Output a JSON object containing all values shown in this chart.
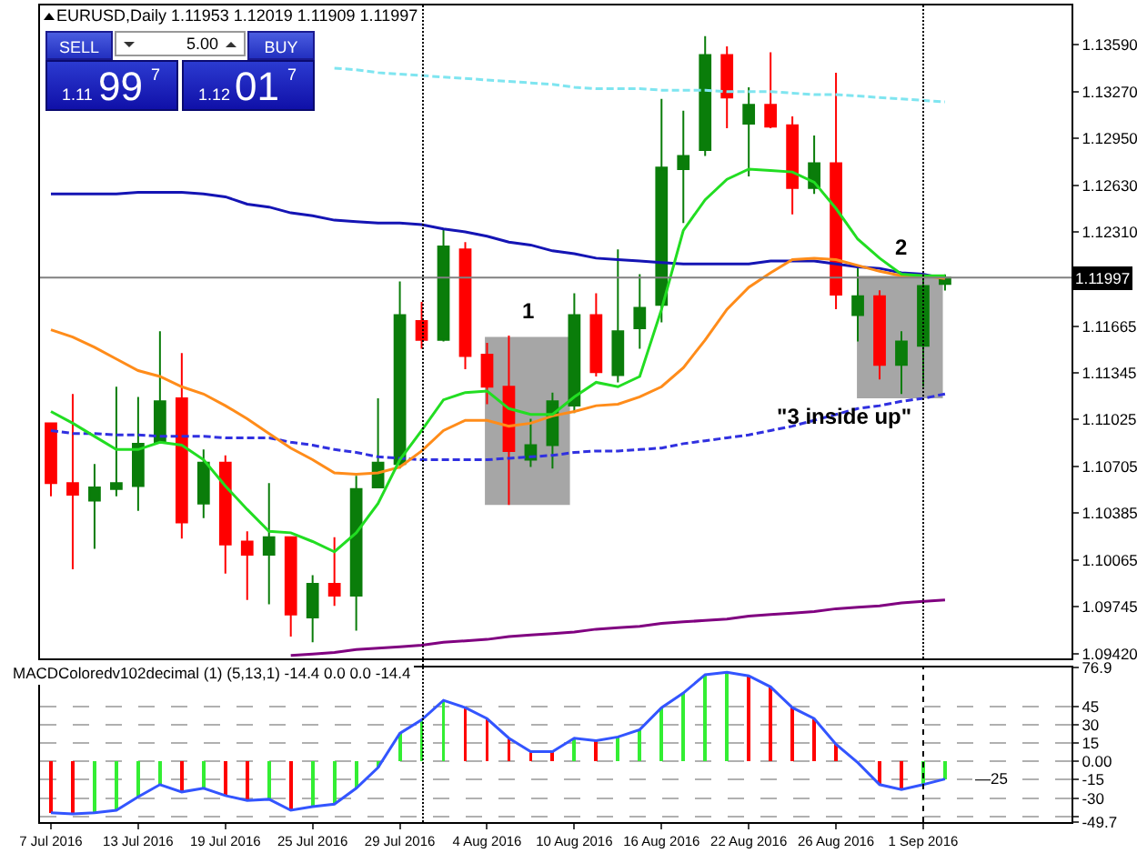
{
  "chart_data": [
    {
      "type": "candlestick",
      "title": "EURUSD,Daily 1.11953 1.12019 1.11909 1.11997",
      "categories": [
        null,
        null,
        null,
        null,
        null,
        null,
        null,
        null,
        null,
        null,
        null,
        null,
        null,
        null,
        null,
        null,
        null,
        null,
        null,
        null,
        null,
        null,
        null,
        null,
        null,
        null,
        null,
        null,
        null,
        null,
        null,
        null,
        null,
        null,
        null,
        null,
        null,
        null,
        null,
        null,
        null,
        null
      ],
      "ohlc": [
        [
          1.11,
          1.11,
          1.105,
          1.1059
        ],
        [
          1.1059,
          1.112,
          1.1,
          1.1051
        ],
        [
          1.1047,
          1.1072,
          1.1014,
          1.1056
        ],
        [
          1.1055,
          1.1125,
          1.105,
          1.1059
        ],
        [
          1.1057,
          1.1118,
          1.104,
          1.1086
        ],
        [
          1.1087,
          1.1163,
          1.1087,
          1.1115
        ],
        [
          1.1117,
          1.1148,
          1.1021,
          1.1032
        ],
        [
          1.1045,
          1.1082,
          1.1035,
          1.1073
        ],
        [
          1.1073,
          1.1078,
          1.0997,
          1.1017
        ],
        [
          1.1019,
          1.1026,
          1.0979,
          1.101
        ],
        [
          1.101,
          1.1059,
          1.0976,
          1.1022
        ],
        [
          1.1022,
          1.1022,
          1.0954,
          1.0969
        ],
        [
          1.0967,
          1.0996,
          1.095,
          1.099
        ],
        [
          1.099,
          1.1022,
          1.0975,
          1.0982
        ],
        [
          1.0982,
          1.1064,
          1.0958,
          1.1055
        ],
        [
          1.1056,
          1.1117,
          1.1056,
          1.1073
        ],
        [
          1.1072,
          1.1197,
          1.1069,
          1.1174
        ],
        [
          1.117,
          1.1183,
          1.1151,
          1.1157
        ],
        [
          1.1157,
          1.1233,
          1.1156,
          1.1221
        ],
        [
          1.1219,
          1.1224,
          1.1137,
          1.1146
        ],
        [
          1.1147,
          1.1155,
          1.1113,
          1.1125
        ],
        [
          1.1125,
          1.116,
          1.1044,
          1.1081
        ],
        [
          1.1075,
          1.1103,
          1.107,
          1.1085
        ],
        [
          1.1085,
          1.1121,
          1.1069,
          1.1115
        ],
        [
          1.1112,
          1.1189,
          1.1107,
          1.1174
        ],
        [
          1.1174,
          1.1189,
          1.1132,
          1.1135
        ],
        [
          1.1133,
          1.1219,
          1.1128,
          1.1163
        ],
        [
          1.1165,
          1.1202,
          1.1151,
          1.1179
        ],
        [
          1.1181,
          1.1322,
          1.1169,
          1.1275
        ],
        [
          1.1274,
          1.1314,
          1.1237,
          1.1283
        ],
        [
          1.1287,
          1.1365,
          1.1283,
          1.1352
        ],
        [
          1.1352,
          1.1358,
          1.1302,
          1.1323
        ],
        [
          1.1305,
          1.133,
          1.1269,
          1.1318
        ],
        [
          1.1318,
          1.1354,
          1.1302,
          1.1303
        ],
        [
          1.1304,
          1.131,
          1.1243,
          1.1261
        ],
        [
          1.1261,
          1.1297,
          1.1257,
          1.1278
        ],
        [
          1.1278,
          1.134,
          1.1178,
          1.1188
        ],
        [
          1.1174,
          1.1207,
          1.1156,
          1.1187
        ],
        [
          1.1187,
          1.1191,
          1.113,
          1.114
        ],
        [
          1.114,
          1.1163,
          1.112,
          1.1156
        ],
        [
          1.1153,
          1.1199,
          1.1125,
          1.1194
        ],
        [
          1.11953,
          1.12019,
          1.11909,
          1.11997
        ]
      ],
      "colors": [
        "#ff0000",
        "#ff0000",
        "#0a7d0a",
        "#0a7d0a",
        "#0a7d0a",
        "#0a7d0a",
        "#ff0000",
        "#0a7d0a",
        "#ff0000",
        "#ff0000",
        "#0a7d0a",
        "#ff0000",
        "#0a7d0a",
        "#ff0000",
        "#0a7d0a",
        "#0a7d0a",
        "#0a7d0a",
        "#ff0000",
        "#0a7d0a",
        "#ff0000",
        "#ff0000",
        "#ff0000",
        "#0a7d0a",
        "#0a7d0a",
        "#0a7d0a",
        "#ff0000",
        "#0a7d0a",
        "#0a7d0a",
        "#0a7d0a",
        "#0a7d0a",
        "#0a7d0a",
        "#ff0000",
        "#0a7d0a",
        "#ff0000",
        "#ff0000",
        "#0a7d0a",
        "#ff0000",
        "#0a7d0a",
        "#ff0000",
        "#0a7d0a",
        "#0a7d0a",
        "#0a7d0a"
      ],
      "series": [
        {
          "type": "line",
          "color": "#7fe5f0",
          "line_style": "dashed",
          "values": [
            null,
            null,
            null,
            null,
            null,
            null,
            null,
            null,
            null,
            null,
            null,
            null,
            null,
            1.1343,
            1.1342,
            1.134,
            1.1339,
            1.1338,
            1.1337,
            1.1336,
            1.1335,
            1.1334,
            1.1333,
            1.1332,
            1.133,
            1.1329,
            1.1329,
            1.1329,
            1.1328,
            1.1328,
            1.1328,
            1.1327,
            1.1327,
            1.1327,
            1.1326,
            1.1325,
            1.1325,
            1.1324,
            1.1323,
            1.1322,
            1.1321,
            1.132
          ]
        },
        {
          "type": "line",
          "color": "#1414b4",
          "line_style": "solid",
          "values": [
            1.1257,
            1.1257,
            1.1257,
            1.1257,
            1.1258,
            1.1258,
            1.1258,
            1.1257,
            1.1255,
            1.125,
            1.1248,
            1.1244,
            1.1242,
            1.1239,
            1.1238,
            1.1237,
            1.1237,
            1.1236,
            1.1233,
            1.1231,
            1.1228,
            1.1224,
            1.1222,
            1.1218,
            1.1216,
            1.1213,
            1.1212,
            1.1211,
            1.121,
            1.1209,
            1.1209,
            1.1209,
            1.1209,
            1.1211,
            1.1211,
            1.1211,
            1.1209,
            1.1207,
            1.1206,
            1.1203,
            1.1202,
            1.1199
          ]
        },
        {
          "type": "line",
          "color": "#3030e0",
          "line_style": "dashed",
          "values": [
            1.1095,
            1.1093,
            1.1093,
            1.1092,
            1.1092,
            1.1091,
            1.1091,
            1.1091,
            1.109,
            1.109,
            1.109,
            1.1087,
            1.1085,
            1.1082,
            1.108,
            1.1077,
            1.1076,
            1.1075,
            1.1075,
            1.1075,
            1.1075,
            1.1076,
            1.1077,
            1.1078,
            1.108,
            1.1081,
            1.1081,
            1.1082,
            1.1083,
            1.1086,
            1.1088,
            1.109,
            1.1092,
            1.1095,
            1.1098,
            1.1102,
            1.1106,
            1.111,
            1.1112,
            1.1115,
            1.1117,
            1.112
          ]
        },
        {
          "type": "line",
          "color": "#ff8c1a",
          "line_style": "solid",
          "values": [
            1.1164,
            1.1159,
            1.1152,
            1.1144,
            1.1136,
            1.1132,
            1.1125,
            1.112,
            1.1112,
            1.1103,
            1.1093,
            1.1083,
            1.1075,
            1.1066,
            1.1065,
            1.1066,
            1.107,
            1.1081,
            1.1095,
            1.1102,
            1.1102,
            1.1098,
            1.11,
            1.1105,
            1.1108,
            1.1112,
            1.1113,
            1.1118,
            1.1125,
            1.1138,
            1.1157,
            1.1178,
            1.1193,
            1.1203,
            1.1212,
            1.1213,
            1.1212,
            1.1208,
            1.1204,
            1.1201,
            1.1201,
            1.1199
          ]
        },
        {
          "type": "line",
          "color": "#22dd22",
          "line_style": "solid",
          "values": [
            1.1108,
            1.11,
            1.1091,
            1.1082,
            1.1082,
            1.1087,
            1.1085,
            1.1075,
            1.1057,
            1.1041,
            1.1026,
            1.1025,
            1.1019,
            1.1012,
            1.1025,
            1.1045,
            1.1075,
            1.1095,
            1.1116,
            1.1121,
            1.1122,
            1.111,
            1.1106,
            1.1106,
            1.1118,
            1.1128,
            1.1125,
            1.1132,
            1.1178,
            1.1232,
            1.1253,
            1.1267,
            1.1274,
            1.1273,
            1.1272,
            1.1265,
            1.1247,
            1.1226,
            1.1213,
            1.1202,
            1.1201,
            1.1201
          ]
        },
        {
          "type": "line",
          "color": "#800080",
          "line_style": "solid",
          "values": [
            null,
            null,
            null,
            null,
            null,
            null,
            null,
            null,
            null,
            null,
            null,
            1.0941,
            1.0942,
            1.0943,
            1.0945,
            1.0946,
            1.0947,
            1.0948,
            1.095,
            1.0951,
            1.0952,
            1.0954,
            1.0955,
            1.0956,
            1.0957,
            1.0959,
            1.096,
            1.0961,
            1.0963,
            1.0964,
            1.0965,
            1.0966,
            1.0968,
            1.0969,
            1.097,
            1.0971,
            1.0973,
            1.0974,
            1.0975,
            1.0977,
            1.0978,
            1.0979
          ]
        }
      ],
      "ylim": [
        1.0939,
        1.1386
      ],
      "yticks": [
        {
          "value": 1.0942,
          "label": "1.09420"
        },
        1.09745,
        1.10065,
        1.10385,
        1.10705,
        1.11025,
        1.11345,
        1.11665,
        {
          "value": 1.1231,
          "label": "1.12310"
        },
        {
          "value": 1.1263,
          "label": "1.12630"
        },
        {
          "value": 1.1295,
          "label": "1.12950"
        },
        {
          "value": 1.1327,
          "label": "1.13270"
        },
        {
          "value": 1.1359,
          "label": "1.13590"
        }
      ],
      "tick_labels": "y",
      "ref_lines": [
        {
          "axis": "y",
          "value": 1.11997,
          "label": "1.11997",
          "color": "#808080",
          "line_style": "solid"
        }
      ],
      "bands": [
        {
          "axis": "y",
          "from": 1.1044,
          "to": 1.1159,
          "color": "#a6a6a6"
        },
        {
          "axis": "y",
          "from": 1.1117,
          "to": 1.1201,
          "color": "#a6a6a6"
        }
      ],
      "annotations": [
        "1",
        "2",
        "\"3 inside up\"",
        "SELL",
        "5.00",
        "BUY",
        "1.11",
        "99",
        "7",
        "1.12",
        "01",
        "7"
      ]
    },
    {
      "type": "bar",
      "categories": [
        "7 Jul 2016",
        null,
        null,
        null,
        "13 Jul 2016",
        null,
        null,
        null,
        "19 Jul 2016",
        null,
        null,
        null,
        "25 Jul 2016",
        null,
        null,
        null,
        "29 Jul 2016",
        null,
        null,
        null,
        "4 Aug 2016",
        null,
        null,
        null,
        "10 Aug 2016",
        null,
        null,
        null,
        "16 Aug 2016",
        null,
        null,
        null,
        "22 Aug 2016",
        null,
        null,
        null,
        "26 Aug 2016",
        null,
        null,
        null,
        "1 Sep 2016",
        null
      ],
      "series": [
        {
          "values": [
            -42,
            -43,
            -42,
            -40,
            -29,
            -19,
            -25,
            -22,
            -28,
            -32,
            -31,
            -40,
            -37,
            -35,
            -22,
            -5,
            23,
            34,
            50,
            44,
            35,
            19,
            8,
            8,
            19,
            17,
            20,
            26,
            44,
            56,
            71,
            73,
            70,
            61,
            44,
            35,
            14,
            null,
            -19,
            -23,
            -19,
            -14.4
          ],
          "colors": [
            "#ff0000",
            "#ff0000",
            "#33ee33",
            "#33ee33",
            "#33ee33",
            "#33ee33",
            "#ff0000",
            "#33ee33",
            "#ff0000",
            "#ff0000",
            "#33ee33",
            "#ff0000",
            "#33ee33",
            "#33ee33",
            "#33ee33",
            "#33ee33",
            "#33ee33",
            "#33ee33",
            "#33ee33",
            "#ff0000",
            "#ff0000",
            "#ff0000",
            "#ff0000",
            "#ff0000",
            "#33ee33",
            "#ff0000",
            "#33ee33",
            "#33ee33",
            "#33ee33",
            "#33ee33",
            "#33ee33",
            "#33ee33",
            "#ff0000",
            "#ff0000",
            "#ff0000",
            "#ff0000",
            "#ff0000",
            "#ff0000",
            "#ff0000",
            "#ff0000",
            "#33ee33",
            "#33ee33"
          ]
        },
        {
          "type": "line",
          "color": "#3355ff",
          "values": [
            -42,
            -43,
            -42,
            -40,
            -29,
            -19,
            -25,
            -22,
            -28,
            -32,
            -31,
            -40,
            -37,
            -35,
            -22,
            -5,
            23,
            34,
            50,
            44,
            35,
            19,
            8,
            8,
            19,
            17,
            20,
            26,
            44,
            56,
            71,
            73,
            70,
            61,
            44,
            35,
            14,
            -1,
            -19,
            -23,
            -19,
            -14.4
          ]
        }
      ],
      "ylim": [
        -49.7,
        76.9
      ],
      "yticks": [
        76.9,
        45,
        30,
        15,
        {
          "value": 0,
          "label": "0.00"
        },
        -15,
        -30,
        {
          "value": -45,
          "label": null
        },
        -49.7
      ],
      "grid": "y",
      "ref_lines": [
        {
          "axis": "x",
          "value": "1 Sep 2016",
          "color": "#000000",
          "line_style": "dotted"
        }
      ],
      "annotations": [
        "MACDColoredv102decimal (1) (5,13,1) -14.4 0.0 0.0 -14.4",
        "—25"
      ]
    }
  ]
}
